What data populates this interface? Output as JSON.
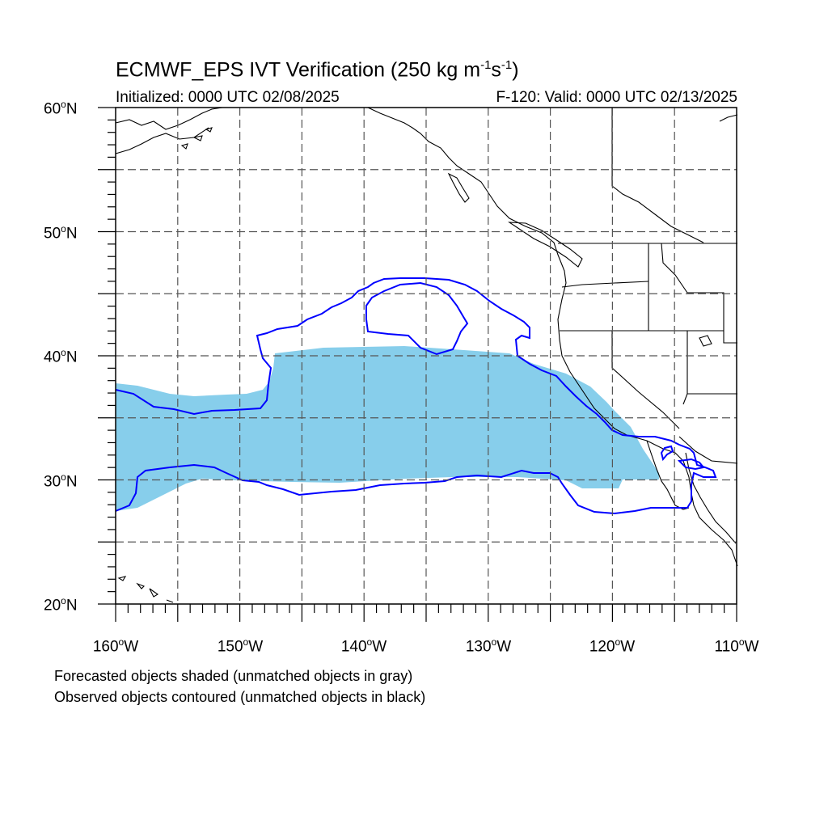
{
  "title": {
    "main": "ECMWF_EPS IVT Verification (250 kg m",
    "exp1": "-1",
    "mid": "s",
    "exp2": "-1",
    "close": ")"
  },
  "subtitle": {
    "initialized": "Initialized: 0000 UTC 02/08/2025",
    "valid": "F-120: Valid: 0000 UTC 02/13/2025"
  },
  "lat_labels": [
    {
      "num": "60",
      "deg": "o",
      "hemi": "N"
    },
    {
      "num": "50",
      "deg": "o",
      "hemi": "N"
    },
    {
      "num": "40",
      "deg": "o",
      "hemi": "N"
    },
    {
      "num": "30",
      "deg": "o",
      "hemi": "N"
    },
    {
      "num": "20",
      "deg": "o",
      "hemi": "N"
    }
  ],
  "lon_labels": [
    {
      "num": "160",
      "deg": "o",
      "hemi": "W"
    },
    {
      "num": "150",
      "deg": "o",
      "hemi": "W"
    },
    {
      "num": "140",
      "deg": "o",
      "hemi": "W"
    },
    {
      "num": "130",
      "deg": "o",
      "hemi": "W"
    },
    {
      "num": "120",
      "deg": "o",
      "hemi": "W"
    },
    {
      "num": "110",
      "deg": "o",
      "hemi": "W"
    }
  ],
  "notes": {
    "forecast": "Forecasted objects shaded (unmatched objects in gray)",
    "observed": "Observed objects contoured (unmatched objects in black)"
  },
  "map": {
    "lon_range": [
      -160,
      -110
    ],
    "lat_range": [
      20,
      60
    ],
    "grid_interval_deg": 5,
    "grid_style": "dashed",
    "forecast_fill_color": "#87ceeb",
    "observed_contour_color": "#0000ff",
    "coastline_color": "#000000"
  }
}
